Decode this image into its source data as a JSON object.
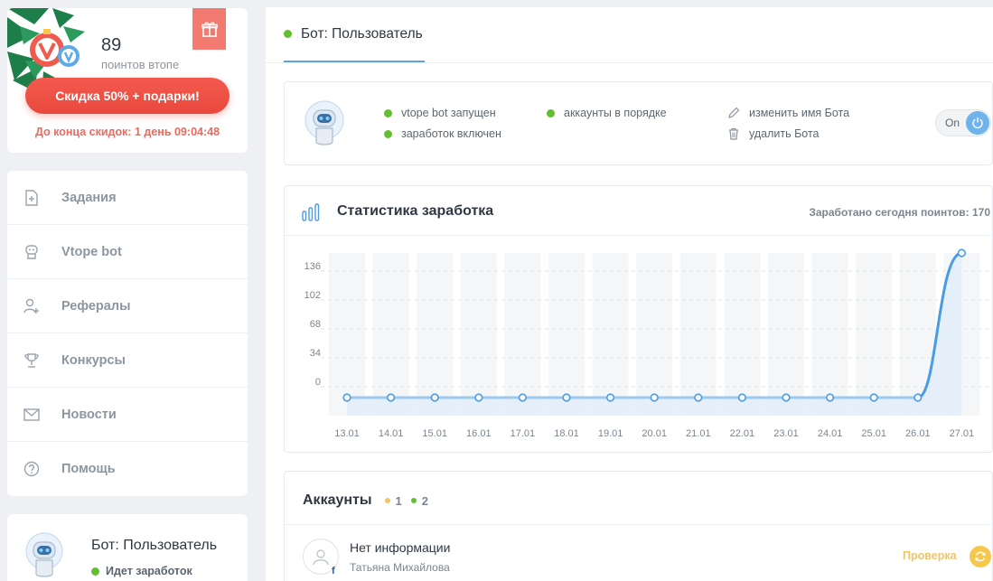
{
  "promo": {
    "points_value": "89",
    "points_label": "поинтов втопе",
    "sale_button": "Скидка 50% + подарки!",
    "sale_timer": "До конца скидок: 1 день 09:04:48"
  },
  "menu": {
    "items": [
      {
        "label": "Задания",
        "icon": "tasks-icon"
      },
      {
        "label": "Vtope bot",
        "icon": "robot-icon"
      },
      {
        "label": "Рефералы",
        "icon": "add-user-icon"
      },
      {
        "label": "Конкурсы",
        "icon": "trophy-icon"
      },
      {
        "label": "Новости",
        "icon": "mail-icon"
      },
      {
        "label": "Помощь",
        "icon": "help-icon"
      }
    ]
  },
  "bot_card": {
    "title": "Бот: Пользователь",
    "status": "Идет заработок"
  },
  "tab": {
    "label": "Бот: Пользователь"
  },
  "status": {
    "items": [
      "vtope bot запущен",
      "заработок включен",
      "аккаунты в порядке"
    ],
    "actions": [
      "изменить имя Бота",
      "удалить Бота"
    ],
    "toggle_label": "On",
    "dot_color": "#63bf2f"
  },
  "stats": {
    "title": "Статистика заработка",
    "earned_today": "Заработано сегодня поинтов: 170"
  },
  "chart_data": {
    "type": "area",
    "x": [
      "13.01",
      "14.01",
      "15.01",
      "16.01",
      "17.01",
      "18.01",
      "19.01",
      "20.01",
      "21.01",
      "22.01",
      "23.01",
      "24.01",
      "25.01",
      "26.01",
      "27.01"
    ],
    "values": [
      0,
      0,
      0,
      0,
      0,
      0,
      0,
      0,
      0,
      0,
      0,
      0,
      0,
      0,
      170
    ],
    "yticks": [
      "0",
      "34",
      "68",
      "102",
      "136"
    ],
    "ylim": [
      0,
      170
    ],
    "grid": true,
    "line_color": "#4a9be6",
    "fill_color": "#e3eefa"
  },
  "accounts": {
    "title": "Аккаунты",
    "count_yellow": "1",
    "count_green": "2",
    "row": {
      "name": "Нет информации",
      "sub": "Татьяна Михайлова",
      "network": "f",
      "status": "Проверка"
    }
  }
}
